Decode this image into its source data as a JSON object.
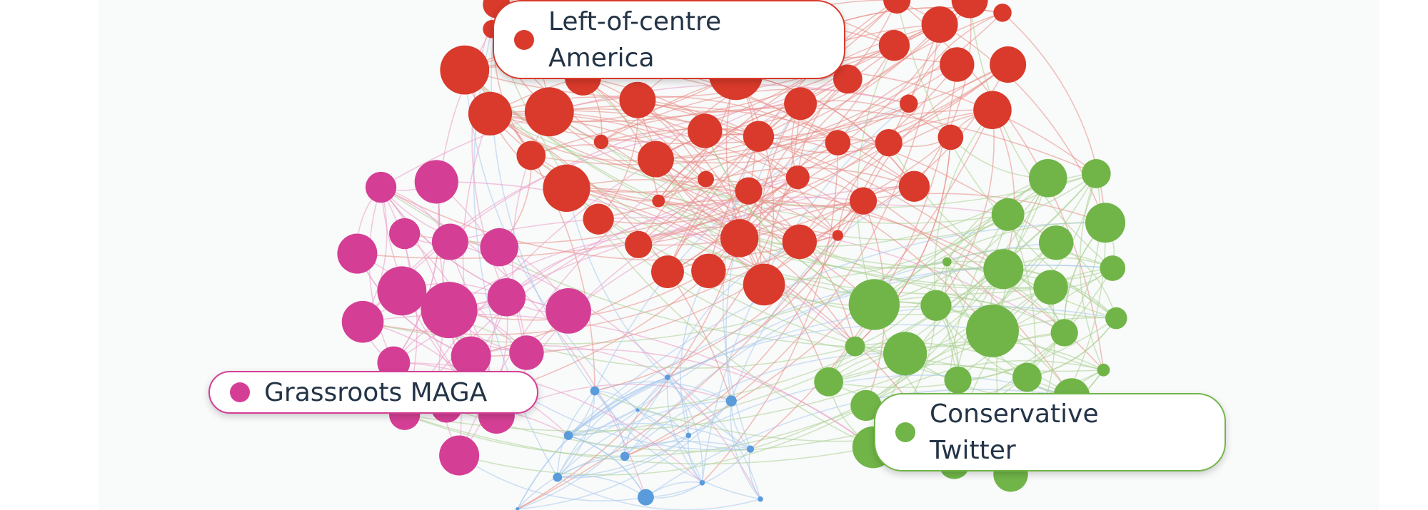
{
  "labels": [
    {
      "text": "Left-of-centre America",
      "color": "#d93a2b"
    },
    {
      "text": "Grassroots MAGA",
      "color": "#d43f95"
    },
    {
      "text": "Conservative Twitter",
      "color": "#71b548"
    }
  ]
}
